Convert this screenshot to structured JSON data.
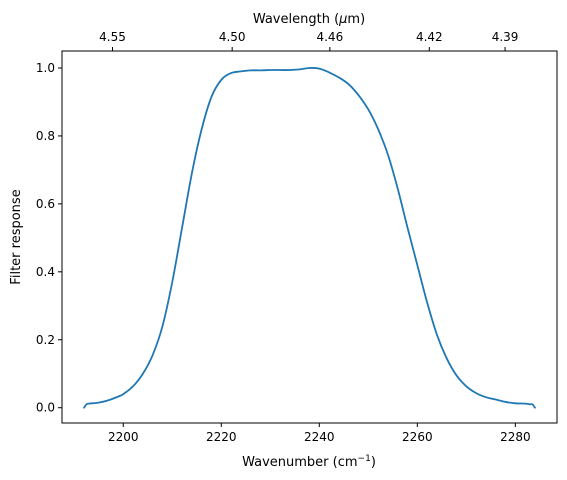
{
  "chart_data": {
    "type": "line",
    "title": "",
    "xlabel": "Wavenumber (cm",
    "xlabel_sup": "−1",
    "xlabel_end": ")",
    "ylabel": "Filter response",
    "top_xlabel_start": "Wavelength (",
    "top_xlabel_mu": "μ",
    "top_xlabel_end": "m)",
    "xlim": [
      2187.5,
      2288.5
    ],
    "ylim": [
      -0.045,
      1.05
    ],
    "grid": false,
    "legend": "none",
    "x_ticks": [
      2200,
      2220,
      2240,
      2260,
      2280
    ],
    "x_tick_labels": [
      "2200",
      "2220",
      "2240",
      "2260",
      "2280"
    ],
    "y_ticks": [
      0.0,
      0.2,
      0.4,
      0.6,
      0.8,
      1.0
    ],
    "y_tick_labels": [
      "0.0",
      "0.2",
      "0.4",
      "0.6",
      "0.8",
      "1.0"
    ],
    "top_ticks": [
      4.55,
      4.5,
      4.46,
      4.42,
      4.39
    ],
    "top_tick_labels": [
      "4.55",
      "4.50",
      "4.46",
      "4.42",
      "4.39"
    ],
    "series": [
      {
        "color": "#1f77b4",
        "x": [
          2192.0,
          2192.5,
          2193.0,
          2195.0,
          2197.0,
          2199.0,
          2200.0,
          2202.0,
          2204.0,
          2206.0,
          2208.0,
          2210.0,
          2212.0,
          2214.0,
          2216.0,
          2218.0,
          2220.0,
          2222.0,
          2224.0,
          2226.0,
          2228.0,
          2230.0,
          2232.0,
          2234.0,
          2236.0,
          2238.0,
          2240.0,
          2242.0,
          2244.0,
          2246.0,
          2248.0,
          2250.0,
          2252.0,
          2254.0,
          2256.0,
          2258.0,
          2260.0,
          2262.0,
          2264.0,
          2266.0,
          2268.0,
          2270.0,
          2272.0,
          2274.0,
          2276.0,
          2278.0,
          2280.0,
          2282.0,
          2283.0,
          2283.5,
          2284.0
        ],
        "y": [
          0.0,
          0.01,
          0.012,
          0.015,
          0.022,
          0.033,
          0.04,
          0.063,
          0.1,
          0.155,
          0.24,
          0.37,
          0.53,
          0.69,
          0.82,
          0.915,
          0.965,
          0.985,
          0.99,
          0.993,
          0.993,
          0.994,
          0.994,
          0.994,
          0.996,
          1.0,
          0.998,
          0.987,
          0.972,
          0.952,
          0.92,
          0.878,
          0.82,
          0.745,
          0.645,
          0.53,
          0.42,
          0.31,
          0.215,
          0.145,
          0.095,
          0.063,
          0.043,
          0.031,
          0.024,
          0.017,
          0.013,
          0.012,
          0.01,
          0.01,
          0.0
        ]
      }
    ]
  }
}
